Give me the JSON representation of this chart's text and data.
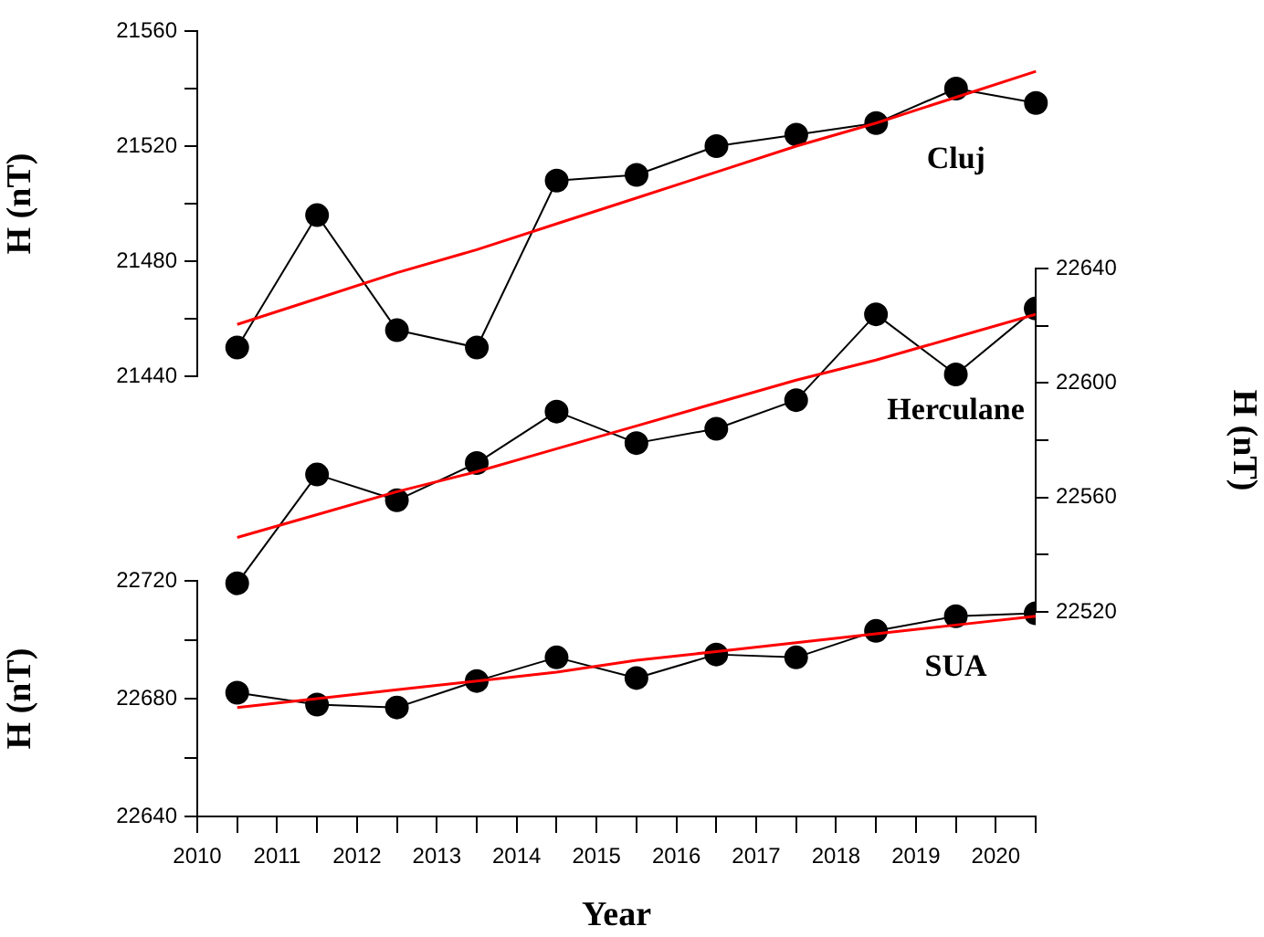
{
  "chart_data": [
    {
      "type": "line",
      "ylabel": "H (nT)",
      "categories": [
        null,
        null,
        null,
        null,
        null,
        null,
        null,
        null,
        null,
        null,
        null
      ],
      "ylim": [
        21440,
        21560
      ],
      "yticks": [
        21440,
        {
          "value": 21460,
          "label": null
        },
        21480,
        {
          "value": 21500,
          "label": null
        },
        21520,
        {
          "value": 21540,
          "label": null
        },
        21560
      ],
      "tick_labels": "y",
      "grid": false,
      "legend": false,
      "marker": "circle",
      "series": [
        {
          "name": "Cluj",
          "color": "#000000",
          "values": [
            21450,
            21496,
            21456,
            21450,
            21508,
            21510,
            21520,
            21524,
            21528,
            21540,
            21535
          ]
        },
        {
          "color": "#ff0000",
          "marker": "none",
          "values": [
            21458,
            21467,
            21476,
            21484,
            21493,
            21502,
            21511,
            21520,
            21528,
            21537,
            21546
          ]
        }
      ]
    },
    {
      "type": "line",
      "y2label": "H (nT)",
      "x": [
        2010.5,
        2011.5,
        2012.5,
        2013.5,
        2014.5,
        2015.5,
        2016.5,
        2017.5,
        2018.5,
        2019.5,
        2020.5
      ],
      "xlim": [
        2010,
        2020.5
      ],
      "y2lim": [
        22520,
        22640
      ],
      "y2ticks": [
        22520,
        {
          "value": 22540,
          "label": null
        },
        22560,
        {
          "value": 22580,
          "label": null
        },
        22600,
        {
          "value": 22620,
          "label": null
        },
        22640
      ],
      "tick_labels": "y2",
      "grid": false,
      "legend": false,
      "marker": "circle",
      "series": [
        {
          "name": "Herculane",
          "color": "#000000",
          "axis": "y2",
          "values": [
            22530,
            22568,
            22559,
            22572,
            22590,
            22579,
            22584,
            22594,
            22624,
            22603,
            22626
          ]
        },
        {
          "color": "#ff0000",
          "marker": "none",
          "axis": "y2",
          "values": [
            22546,
            22554,
            22562,
            22569,
            22577,
            22585,
            22593,
            22601,
            22608,
            22616,
            22624
          ]
        }
      ]
    },
    {
      "type": "line",
      "xlabel": "Year",
      "ylabel": "H (nT)",
      "x": [
        2010.5,
        2011.5,
        2012.5,
        2013.5,
        2014.5,
        2015.5,
        2016.5,
        2017.5,
        2018.5,
        2019.5,
        2020.5
      ],
      "xlim": [
        2010,
        2020.5
      ],
      "xticks": [
        2010,
        {
          "value": 2010.5,
          "label": null
        },
        2011,
        {
          "value": 2011.5,
          "label": null
        },
        2012,
        {
          "value": 2012.5,
          "label": null
        },
        2013,
        {
          "value": 2013.5,
          "label": null
        },
        2014,
        {
          "value": 2014.5,
          "label": null
        },
        2015,
        {
          "value": 2015.5,
          "label": null
        },
        2016,
        {
          "value": 2016.5,
          "label": null
        },
        2017,
        {
          "value": 2017.5,
          "label": null
        },
        2018,
        {
          "value": 2018.5,
          "label": null
        },
        2019,
        {
          "value": 2019.5,
          "label": null
        },
        2020,
        {
          "value": 2020.5,
          "label": null
        }
      ],
      "ylim": [
        22640,
        22720
      ],
      "yticks": [
        22640,
        {
          "value": 22660,
          "label": null
        },
        22680,
        {
          "value": 22700,
          "label": null
        },
        22720
      ],
      "grid": false,
      "legend": false,
      "marker": "circle",
      "series": [
        {
          "name": "SUA",
          "color": "#000000",
          "values": [
            22682,
            22678,
            22677,
            22686,
            22694,
            22687,
            22695,
            22694,
            22703,
            22708,
            22709
          ]
        },
        {
          "color": "#ff0000",
          "marker": "none",
          "values": [
            22677,
            22680,
            22683,
            22686,
            22689,
            22693,
            22696,
            22699,
            22702,
            22705,
            22708
          ]
        }
      ]
    }
  ]
}
